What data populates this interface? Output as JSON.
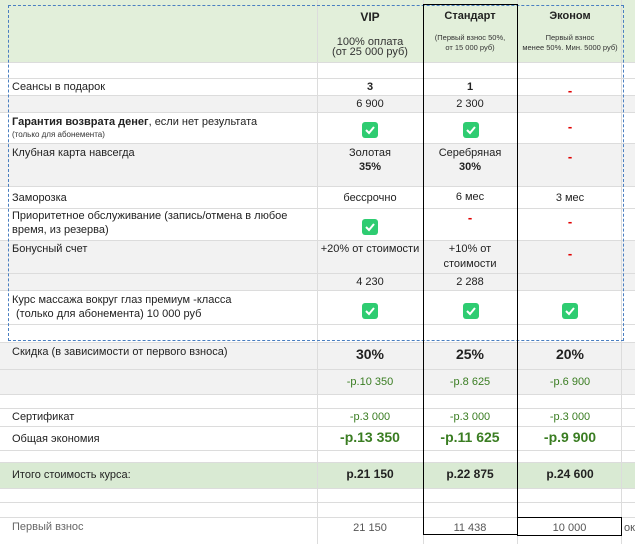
{
  "headers": {
    "vip": {
      "title": "VIP",
      "note": "100% оплата\n(от 25 000 руб)"
    },
    "standard": {
      "title": "Стандарт",
      "note": "(Первый взнос 50%,\nот 15 000 руб)"
    },
    "econom": {
      "title": "Эконом",
      "note": "Первый взнос\nменее 50%. Мин. 5000 руб)"
    }
  },
  "rows": {
    "sessions": {
      "label": "Сеансы в подарок",
      "vip": "3",
      "standard": "1"
    },
    "sessions_price": {
      "vip": "6 900",
      "standard": "2 300"
    },
    "guarantee": {
      "label_bold": "Гарантия возврата денег",
      "label_rest": ", если нет результата",
      "sub": "(только для абонемента)"
    },
    "club_card": {
      "label": "Клубная карта навсегда",
      "vip_line1": "Золотая",
      "vip_line2": "35%",
      "standard_line1": "Серебряная",
      "standard_line2": "30%"
    },
    "freeze": {
      "label": "Заморозка",
      "vip": "бессрочно",
      "standard": "6 мес",
      "econom": "3 мес"
    },
    "priority": {
      "label_line1": "Приоритетное обслуживание (запись/отмена в любое",
      "label_line2": "время, из резерва)"
    },
    "bonus": {
      "label": "Бонусный счет",
      "vip": "+20% от стоимости",
      "standard_line1": "+10% от",
      "standard_line2": "стоимости"
    },
    "bonus_amount": {
      "vip": "4 230",
      "standard": "2 288"
    },
    "massage": {
      "label_line1": "Курс массажа вокруг глаз премиум -класса",
      "label_line2": "(только для абонемента) 10 000 руб"
    },
    "discount": {
      "label": "Скидка (в зависимости от первого взноса)",
      "vip": "30%",
      "standard": "25%",
      "econom": "20%"
    },
    "discount_amount": {
      "vip": "-р.10 350",
      "standard": "-р.8 625",
      "econom": "-р.6 900"
    },
    "certificate": {
      "label": "Сертификат",
      "vip": "-р.3 000",
      "standard": "-р.3 000",
      "econom": "-р.3 000"
    },
    "total_saving": {
      "label": "Общая экономия",
      "vip": "-р.13 350",
      "standard": "-р.11 625",
      "econom": "-р.9 900"
    },
    "total_cost": {
      "label": "Итого стоимость курса:",
      "vip": "р.21 150",
      "standard": "р.22 875",
      "econom": "р.24 600"
    },
    "first_payment": {
      "label": "Первый взнос",
      "vip": "21 150",
      "standard": "11 438",
      "econom": "10 000",
      "overflow": "ок"
    }
  },
  "symbols": {
    "dash": "-"
  },
  "colors": {
    "header_bg": "#e2efda",
    "row_alt_bg": "#f2f2f2",
    "check_green": "#2ecc71",
    "dash_red": "#e00000",
    "total_bg": "#d9ead3"
  }
}
